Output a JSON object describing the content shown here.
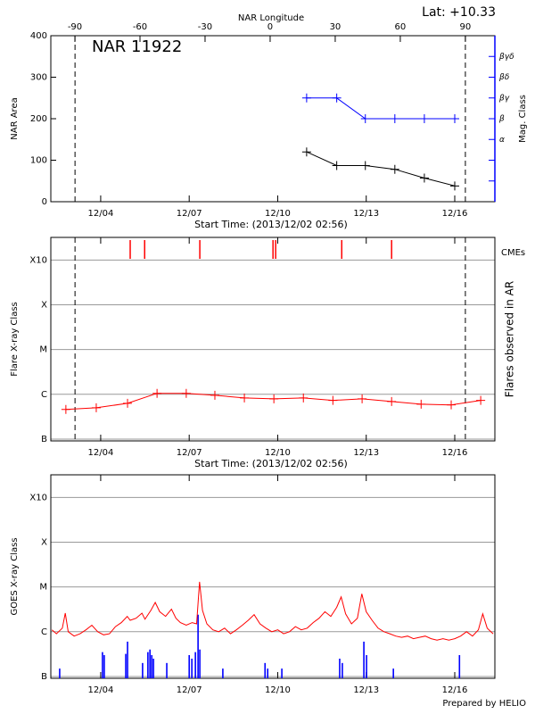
{
  "chart_data": [
    {
      "type": "line",
      "title": "NAR 11922",
      "annotation": "Lat: +10.33",
      "x2label": "NAR Longitude",
      "x2lim": [
        -101.1,
        103.6
      ],
      "x2ticks": [
        -90,
        -60,
        -30,
        0,
        30,
        60,
        90
      ],
      "ylabel": "NAR Area",
      "ylim": [
        0,
        400
      ],
      "yticks": [
        0,
        100,
        200,
        300,
        400
      ],
      "y2label": "Mag. Class",
      "y2lim": [
        0,
        8
      ],
      "y2_color": "#0000ff",
      "y2ticks": [
        {
          "value": 3,
          "label": "α"
        },
        {
          "value": 4,
          "label": "β"
        },
        {
          "value": 5,
          "label": "βγ"
        },
        {
          "value": 6,
          "label": "βδ"
        },
        {
          "value": 7,
          "label": "βγδ"
        }
      ],
      "y2_minor_ticks": [
        1,
        2
      ],
      "xlabel": "Start Time: (2013/12/02 02:56)",
      "xlim": [
        2.31,
        17.36
      ],
      "xticks": [
        {
          "value": 4,
          "label": "12/04"
        },
        {
          "value": 7,
          "label": "12/07"
        },
        {
          "value": 10,
          "label": "12/10"
        },
        {
          "value": 13,
          "label": "12/13"
        },
        {
          "value": 16,
          "label": "12/16"
        }
      ],
      "grid": false,
      "dashed_lines": [
        3.13,
        16.36
      ],
      "series": [
        {
          "color": "#000000",
          "marker": "+",
          "x": [
            10.98,
            12.0,
            12.97,
            13.97,
            14.97,
            16.0
          ],
          "values": [
            120,
            87,
            87,
            78,
            57,
            38
          ]
        },
        {
          "color": "#0000ff",
          "marker": "+",
          "axis": "y2",
          "x": [
            10.98,
            12.0,
            12.97,
            13.97,
            14.97,
            16.0
          ],
          "values": [
            5,
            5,
            4,
            4,
            4,
            4
          ]
        }
      ]
    },
    {
      "type": "line",
      "ylabel": "Flare X-ray Class",
      "y2label": "Flares observed in AR",
      "log_scale": true,
      "ylim": [
        9.1e-08,
        0.0032
      ],
      "yticks": [
        {
          "value": 1e-07,
          "label": "B"
        },
        {
          "value": 1e-06,
          "label": "C"
        },
        {
          "value": 1e-05,
          "label": "M"
        },
        {
          "value": 0.0001,
          "label": "X"
        },
        {
          "value": 0.001,
          "label": "X10"
        }
      ],
      "xlabel": "Start Time: (2013/12/02 02:56)",
      "xlim": [
        2.31,
        17.36
      ],
      "xticks": [
        {
          "value": 4,
          "label": "12/04"
        },
        {
          "value": 7,
          "label": "12/07"
        },
        {
          "value": 10,
          "label": "12/10"
        },
        {
          "value": 13,
          "label": "12/13"
        },
        {
          "value": 16,
          "label": "12/16"
        }
      ],
      "grid": true,
      "dashed_lines": [
        3.13,
        16.36
      ],
      "cmes": {
        "label": "CMEs",
        "color": "#ff0000",
        "x": [
          5.0,
          5.49,
          7.36,
          9.84,
          9.93,
          12.17,
          13.86
        ]
      },
      "series": [
        {
          "color": "#ff0000",
          "marker": "+",
          "x": [
            2.82,
            3.85,
            4.91,
            5.91,
            6.9,
            7.87,
            8.87,
            9.87,
            10.87,
            11.87,
            12.86,
            13.86,
            14.86,
            15.88,
            16.88
          ],
          "values": [
            4.6e-07,
            5e-07,
            6.3e-07,
            1.05e-06,
            1.05e-06,
            9.5e-07,
            8.3e-07,
            7.9e-07,
            8.3e-07,
            7.3e-07,
            7.9e-07,
            6.9e-07,
            6e-07,
            5.8e-07,
            7.3e-07
          ]
        }
      ]
    },
    {
      "type": "line",
      "ylabel": "GOES X-ray Class",
      "log_scale": true,
      "ylim": [
        9.1e-08,
        0.0032
      ],
      "yticks": [
        {
          "value": 1e-07,
          "label": "B"
        },
        {
          "value": 1e-06,
          "label": "C"
        },
        {
          "value": 1e-05,
          "label": "M"
        },
        {
          "value": 0.0001,
          "label": "X"
        },
        {
          "value": 0.001,
          "label": "X10"
        }
      ],
      "xlim": [
        2.31,
        17.36
      ],
      "xticks": [
        {
          "value": 4,
          "label": "12/04"
        },
        {
          "value": 7,
          "label": "12/07"
        },
        {
          "value": 10,
          "label": "12/10"
        },
        {
          "value": 13,
          "label": "12/13"
        },
        {
          "value": 16,
          "label": "12/16"
        }
      ],
      "grid": true,
      "series": [
        {
          "color": "#ff0000",
          "x": [
            2.35,
            2.5,
            2.7,
            2.8,
            2.9,
            3.1,
            3.3,
            3.5,
            3.7,
            3.9,
            4.1,
            4.3,
            4.5,
            4.7,
            4.9,
            5.0,
            5.2,
            5.4,
            5.5,
            5.7,
            5.85,
            6.0,
            6.2,
            6.4,
            6.55,
            6.7,
            6.9,
            7.1,
            7.25,
            7.35,
            7.45,
            7.6,
            7.8,
            8.0,
            8.2,
            8.4,
            8.6,
            8.8,
            9.0,
            9.2,
            9.4,
            9.6,
            9.8,
            10.0,
            10.2,
            10.4,
            10.6,
            10.8,
            11.0,
            11.2,
            11.4,
            11.6,
            11.8,
            12.0,
            12.15,
            12.3,
            12.5,
            12.7,
            12.85,
            13.0,
            13.2,
            13.4,
            13.6,
            13.8,
            14.0,
            14.2,
            14.4,
            14.6,
            14.8,
            15.0,
            15.2,
            15.4,
            15.6,
            15.8,
            16.0,
            16.2,
            16.4,
            16.6,
            16.8,
            16.95,
            17.1,
            17.3
          ],
          "values": [
            1.1e-06,
            9e-07,
            1.2e-06,
            2.6e-06,
            1e-06,
            8e-07,
            9e-07,
            1.1e-06,
            1.4e-06,
            1e-06,
            8.5e-07,
            9e-07,
            1.3e-06,
            1.6e-06,
            2.2e-06,
            1.8e-06,
            2e-06,
            2.6e-06,
            1.9e-06,
            3e-06,
            4.5e-06,
            2.8e-06,
            2.2e-06,
            3.2e-06,
            2e-06,
            1.6e-06,
            1.4e-06,
            1.6e-06,
            1.5e-06,
            1.3e-05,
            3e-06,
            1.5e-06,
            1.1e-06,
            1e-06,
            1.2e-06,
            9e-07,
            1.1e-06,
            1.4e-06,
            1.8e-06,
            2.4e-06,
            1.5e-06,
            1.2e-06,
            1e-06,
            1.1e-06,
            9e-07,
            1e-06,
            1.3e-06,
            1.1e-06,
            1.2e-06,
            1.6e-06,
            2e-06,
            2.8e-06,
            2.2e-06,
            3.5e-06,
            6e-06,
            2.5e-06,
            1.5e-06,
            2e-06,
            7e-06,
            2.8e-06,
            1.8e-06,
            1.2e-06,
            1e-06,
            9e-07,
            8e-07,
            7.5e-07,
            8e-07,
            7e-07,
            7.5e-07,
            8e-07,
            7e-07,
            6.5e-07,
            7e-07,
            6.5e-07,
            7e-07,
            8e-07,
            1e-06,
            8e-07,
            1.1e-06,
            2.5e-06,
            1.2e-06,
            9e-07
          ]
        }
      ],
      "events": {
        "color": "#0000ff",
        "x": [
          2.61,
          4.06,
          4.12,
          4.85,
          4.91,
          5.42,
          5.6,
          5.67,
          5.73,
          5.79,
          6.24,
          7.0,
          7.09,
          7.21,
          7.3,
          7.36,
          8.14,
          9.57,
          9.66,
          10.14,
          12.1,
          12.19,
          12.92,
          13.01,
          13.92,
          16.16
        ],
        "values": [
          1.5e-07,
          3.5e-07,
          3e-07,
          3.2e-07,
          6e-07,
          2e-07,
          3.5e-07,
          4e-07,
          3e-07,
          2.5e-07,
          2e-07,
          3e-07,
          2.5e-07,
          3.5e-07,
          2.4e-06,
          4e-07,
          1.5e-07,
          2e-07,
          1.5e-07,
          1.5e-07,
          2.5e-07,
          2e-07,
          6e-07,
          3e-07,
          1.5e-07,
          3e-07
        ]
      }
    }
  ],
  "footer": "Prepared by HELIO"
}
